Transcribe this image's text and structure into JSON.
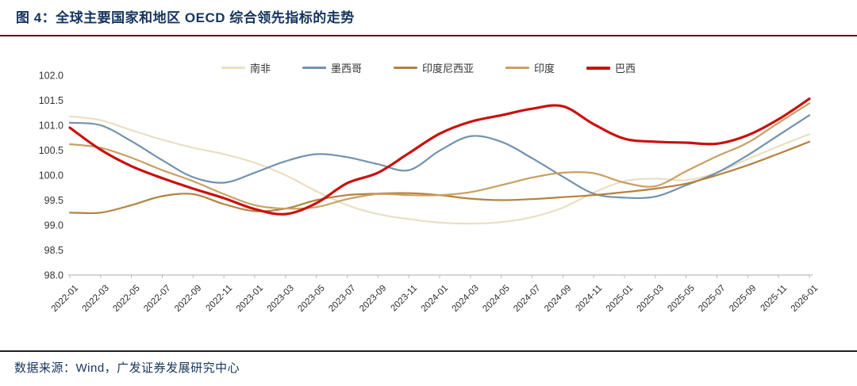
{
  "header": {
    "title": "图 4：全球主要国家和地区 OECD 综合领先指标的走势"
  },
  "footer": {
    "source": "数据来源：Wind，广发证券发展研究中心"
  },
  "colors": {
    "title_text": "#15355e",
    "title_rule": "#5c120c",
    "footer_rule": "#1f1f1f",
    "axis_line": "#c9c9c9",
    "tick_mark": "#bbbbbb",
    "tick_text": "#333333"
  },
  "chart_data": {
    "type": "line",
    "title": "",
    "xlabel": "",
    "ylabel": "",
    "ylim": [
      98.0,
      102.0
    ],
    "ytick_step": 0.5,
    "ytick_decimals": 1,
    "grid": false,
    "legend_position": "top",
    "x_label_rotation": -45,
    "categories": [
      "2022-01",
      "2022-03",
      "2022-05",
      "2022-07",
      "2022-09",
      "2022-11",
      "2023-01",
      "2023-03",
      "2023-05",
      "2023-07",
      "2023-09",
      "2023-11",
      "2024-01",
      "2024-03",
      "2024-05",
      "2024-07",
      "2024-09",
      "2024-11",
      "2025-01",
      "2025-03",
      "2025-05",
      "2025-07",
      "2025-09",
      "2025-11",
      "2026-01"
    ],
    "series": [
      {
        "name": "南非",
        "color": "#e9dfc2",
        "width": 2.2,
        "values": [
          101.18,
          101.1,
          100.9,
          100.71,
          100.55,
          100.42,
          100.25,
          100.0,
          99.68,
          99.4,
          99.22,
          99.12,
          99.05,
          99.03,
          99.06,
          99.16,
          99.35,
          99.65,
          99.88,
          99.93,
          99.9,
          100.05,
          100.32,
          100.58,
          100.82
        ]
      },
      {
        "name": "墨西哥",
        "color": "#7292ae",
        "width": 2.2,
        "values": [
          101.05,
          101.0,
          100.68,
          100.3,
          99.96,
          99.85,
          100.05,
          100.28,
          100.42,
          100.36,
          100.22,
          100.1,
          100.49,
          100.78,
          100.67,
          100.34,
          99.97,
          99.63,
          99.55,
          99.57,
          99.8,
          100.05,
          100.4,
          100.8,
          101.2
        ]
      },
      {
        "name": "印度尼西亚",
        "color": "#b3823f",
        "width": 2.2,
        "values": [
          99.25,
          99.25,
          99.4,
          99.58,
          99.62,
          99.42,
          99.28,
          99.33,
          99.5,
          99.6,
          99.63,
          99.64,
          99.6,
          99.53,
          99.5,
          99.52,
          99.56,
          99.6,
          99.66,
          99.73,
          99.83,
          100.0,
          100.2,
          100.43,
          100.67
        ]
      },
      {
        "name": "印度",
        "color": "#c9a063",
        "width": 2.2,
        "values": [
          100.62,
          100.55,
          100.35,
          100.1,
          99.88,
          99.62,
          99.4,
          99.33,
          99.36,
          99.52,
          99.62,
          99.6,
          99.6,
          99.66,
          99.8,
          99.95,
          100.05,
          100.04,
          99.85,
          99.78,
          100.08,
          100.38,
          100.65,
          101.05,
          101.44
        ]
      },
      {
        "name": "巴西",
        "color": "#c9110e",
        "width": 3.2,
        "values": [
          100.95,
          100.51,
          100.18,
          99.94,
          99.73,
          99.54,
          99.32,
          99.22,
          99.44,
          99.84,
          100.05,
          100.44,
          100.83,
          101.07,
          101.2,
          101.33,
          101.38,
          101.02,
          100.73,
          100.67,
          100.65,
          100.63,
          100.8,
          101.12,
          101.53
        ]
      }
    ]
  }
}
